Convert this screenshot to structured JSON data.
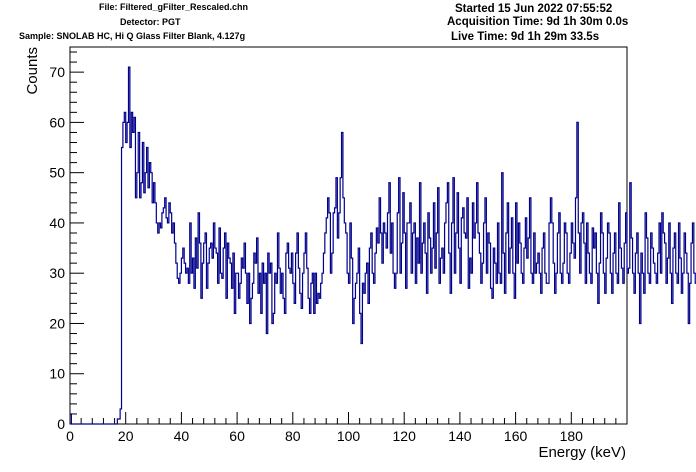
{
  "header": {
    "file": "File: Filtered_gFilter_Rescaled.chn",
    "detector": "Detector: PGT",
    "sample": "Sample: SNOLAB HC, Hi Q Glass Filter Blank, 4.127g",
    "started": "Started 15 Jun 2022 07:55:52",
    "acquisition_time": "Acquisition Time: 9d 1h 30m 0.0s",
    "live_time": "Live Time: 9d 1h 29m 33.5s"
  },
  "chart_data": {
    "type": "line",
    "xlabel": "Energy (keV)",
    "ylabel": "Counts",
    "xlim": [
      0,
      200
    ],
    "ylim": [
      0,
      75
    ],
    "x_ticks": [
      0,
      20,
      40,
      60,
      80,
      100,
      120,
      140,
      160,
      180
    ],
    "y_ticks": [
      0,
      10,
      20,
      30,
      40,
      50,
      60,
      70
    ],
    "series": [
      {
        "color": "#00008b",
        "x_start": 0,
        "bin_width": 0.5,
        "values": [
          2,
          0,
          0,
          0,
          0,
          0,
          0,
          0,
          0,
          0,
          0,
          0,
          0,
          0,
          0,
          0,
          0,
          0,
          0,
          0,
          0,
          0,
          0,
          0,
          0,
          0,
          0,
          0,
          0,
          0,
          0,
          0,
          0,
          0,
          1,
          1,
          3,
          55,
          60,
          62,
          56,
          60,
          71,
          55,
          62,
          58,
          61,
          45,
          50,
          58,
          45,
          48,
          56,
          46,
          50,
          55,
          47,
          52,
          50,
          44,
          48,
          44,
          40,
          38,
          40,
          39,
          42,
          43,
          45,
          41,
          40,
          44,
          42,
          38,
          40,
          36,
          32,
          29,
          28,
          30,
          33,
          35,
          32,
          30,
          31,
          28,
          40,
          30,
          33,
          27,
          37,
          31,
          42,
          36,
          25,
          32,
          36,
          38,
          27,
          32,
          35,
          36,
          33,
          40,
          35,
          34,
          28,
          39,
          30,
          29,
          35,
          38,
          25,
          36,
          33,
          32,
          27,
          34,
          22,
          30,
          30,
          25,
          28,
          33,
          31,
          36,
          30,
          24,
          30,
          20,
          25,
          28,
          34,
          32,
          37,
          26,
          30,
          22,
          32,
          28,
          30,
          18,
          34,
          30,
          32,
          20,
          22,
          30,
          28,
          38,
          31,
          26,
          30,
          25,
          22,
          34,
          36,
          31,
          30,
          34,
          28,
          24,
          34,
          38,
          31,
          26,
          23,
          30,
          34,
          38,
          31,
          25,
          22,
          28,
          30,
          22,
          30,
          24,
          26,
          25,
          28,
          30,
          34,
          38,
          41,
          45,
          42,
          30,
          34,
          42,
          43,
          49,
          37,
          42,
          49,
          58,
          45,
          40,
          38,
          30,
          28,
          40,
          33,
          20,
          25,
          28,
          30,
          35,
          22,
          16,
          28,
          26,
          30,
          32,
          24,
          35,
          38,
          30,
          28,
          34,
          39,
          36,
          45,
          38,
          32,
          40,
          38,
          35,
          42,
          48,
          34,
          40,
          30,
          27,
          30,
          42,
          49,
          30,
          36,
          46,
          38,
          27,
          40,
          40,
          44,
          30,
          38,
          40,
          28,
          37,
          32,
          48,
          30,
          36,
          40,
          34,
          26,
          42,
          37,
          30,
          35,
          44,
          31,
          38,
          47,
          28,
          33,
          35,
          30,
          40,
          44,
          48,
          34,
          26,
          40,
          49,
          30,
          38,
          46,
          35,
          28,
          41,
          43,
          38,
          37,
          45,
          27,
          33,
          30,
          44,
          37,
          40,
          48,
          38,
          34,
          28,
          32,
          40,
          45,
          30,
          38,
          36,
          27,
          25,
          35,
          32,
          28,
          40,
          30,
          28,
          50,
          34,
          26,
          38,
          44,
          30,
          35,
          41,
          30,
          25,
          44,
          32,
          40,
          36,
          30,
          28,
          35,
          41,
          33,
          37,
          45,
          30,
          28,
          38,
          30,
          32,
          34,
          30,
          26,
          35,
          38,
          30,
          28,
          28,
          40,
          45,
          40,
          32,
          26,
          30,
          38,
          42,
          30,
          28,
          32,
          40,
          38,
          30,
          28,
          34,
          40,
          36,
          33,
          45,
          60,
          38,
          30,
          40,
          42,
          36,
          28,
          40,
          34,
          30,
          28,
          39,
          35,
          38,
          30,
          24,
          32,
          42,
          38,
          30,
          26,
          33,
          40,
          38,
          30,
          26,
          34,
          38,
          30,
          28,
          44,
          35,
          31,
          28,
          36,
          42,
          30,
          31,
          48,
          37,
          30,
          26,
          34,
          38,
          30,
          20,
          34,
          30,
          26,
          42,
          37,
          30,
          28,
          38,
          35,
          32,
          30,
          28,
          34,
          40,
          30,
          42,
          38,
          36,
          28,
          33,
          40,
          30,
          24,
          35,
          38,
          30,
          28,
          40,
          33,
          26,
          30,
          38,
          34,
          30,
          20,
          28,
          36,
          40,
          30,
          28,
          34,
          38,
          28,
          32,
          30,
          26,
          34,
          38,
          32,
          30,
          26,
          38,
          40,
          42,
          36,
          33,
          38,
          47,
          50,
          52,
          40,
          38,
          42,
          38,
          30,
          36,
          38,
          40,
          34,
          28,
          33,
          22,
          30,
          34,
          38,
          28,
          30,
          34,
          32,
          40,
          30,
          36,
          38,
          30,
          20,
          36,
          34,
          28,
          30,
          37,
          42,
          40,
          34,
          30
        ]
      }
    ]
  }
}
